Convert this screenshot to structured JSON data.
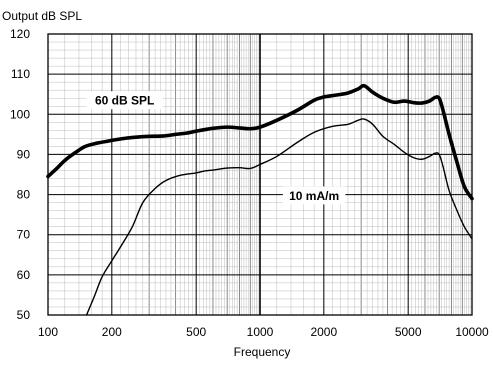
{
  "chart_data": {
    "type": "line",
    "ylabel": "Output dB SPL",
    "xlabel": "Frequency",
    "x_scale": "log",
    "xlim": [
      100,
      10000
    ],
    "ylim": [
      50,
      120
    ],
    "grid": true,
    "x_ticks": [
      {
        "value": 100,
        "label": "100"
      },
      {
        "value": 200,
        "label": "200"
      },
      {
        "value": 500,
        "label": "500"
      },
      {
        "value": 1000,
        "label": "1000"
      },
      {
        "value": 2000,
        "label": "2000"
      },
      {
        "value": 5000,
        "label": "5000"
      },
      {
        "value": 10000,
        "label": "10000"
      }
    ],
    "y_ticks": [
      {
        "value": 50,
        "label": "50"
      },
      {
        "value": 60,
        "label": "60"
      },
      {
        "value": 70,
        "label": "70"
      },
      {
        "value": 80,
        "label": "80"
      },
      {
        "value": 90,
        "label": "90"
      },
      {
        "value": 100,
        "label": "100"
      },
      {
        "value": 110,
        "label": "110"
      },
      {
        "value": 120,
        "label": "120"
      }
    ],
    "series": [
      {
        "name": "60 dB SPL",
        "style": "bold",
        "label_anchor": {
          "x": 230,
          "y": 103.5
        },
        "x": [
          100,
          110,
          120,
          135,
          150,
          170,
          200,
          230,
          260,
          300,
          350,
          400,
          450,
          500,
          600,
          700,
          800,
          900,
          1000,
          1200,
          1500,
          1800,
          2000,
          2300,
          2600,
          2900,
          3100,
          3400,
          3800,
          4300,
          4800,
          5300,
          5800,
          6300,
          6700,
          7000,
          7300,
          7800,
          8500,
          9200,
          10000
        ],
        "y": [
          84.5,
          86.5,
          88.5,
          90.5,
          92,
          92.8,
          93.5,
          94,
          94.3,
          94.5,
          94.6,
          95,
          95.3,
          95.8,
          96.5,
          96.8,
          96.6,
          96.4,
          96.8,
          98.5,
          101,
          103.5,
          104.3,
          104.8,
          105.3,
          106.3,
          107.1,
          105.5,
          104,
          103,
          103.3,
          102.9,
          102.8,
          103.3,
          104.2,
          104,
          101,
          95,
          88,
          82,
          79
        ]
      },
      {
        "name": "10 mA/m",
        "style": "thin",
        "label_anchor": {
          "x": 1800,
          "y": 79.8
        },
        "x": [
          152,
          165,
          180,
          200,
          220,
          250,
          280,
          320,
          360,
          420,
          500,
          550,
          600,
          700,
          800,
          900,
          1000,
          1200,
          1500,
          1800,
          2200,
          2600,
          2900,
          3100,
          3400,
          3800,
          4300,
          4800,
          5300,
          5800,
          6300,
          6700,
          7000,
          7300,
          7800,
          8500,
          9200,
          10000
        ],
        "y": [
          50,
          54.5,
          59.5,
          63.5,
          67,
          72,
          78,
          81.5,
          83.5,
          84.8,
          85.4,
          85.9,
          86.1,
          86.6,
          86.7,
          86.5,
          87.5,
          89.5,
          93,
          95.5,
          97,
          97.5,
          98.5,
          98.8,
          97.5,
          94.5,
          92.5,
          90.5,
          89.2,
          88.8,
          89.5,
          90.3,
          90,
          87,
          81,
          76,
          72,
          69
        ]
      }
    ]
  }
}
